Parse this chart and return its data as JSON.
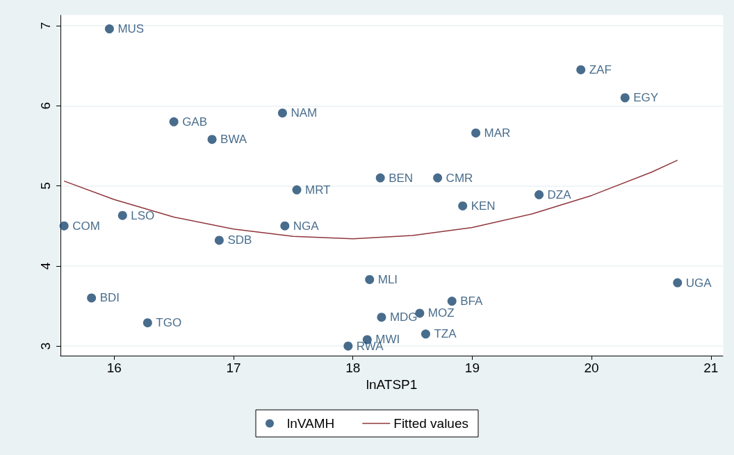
{
  "chart_data": {
    "type": "scatter",
    "xlabel": "lnATSP1",
    "xlim": [
      15.55,
      21.1
    ],
    "xticks": [
      16,
      17,
      18,
      19,
      20,
      21
    ],
    "ylim": [
      2.88,
      7.13
    ],
    "yticks": [
      3,
      4,
      5,
      6,
      7
    ],
    "grid": "y",
    "legend": "bottom",
    "marker": "circle",
    "series": [
      {
        "name": "lnVAMH",
        "color": "#1a476f",
        "x": [
          15.96,
          19.91,
          20.28,
          17.41,
          16.5,
          16.82,
          19.03,
          18.23,
          18.71,
          17.53,
          19.56,
          18.92,
          15.58,
          16.07,
          17.43,
          16.88,
          18.14,
          20.72,
          15.81,
          18.83,
          18.56,
          18.24,
          16.28,
          18.61,
          18.12,
          17.96
        ],
        "values": [
          6.96,
          6.45,
          6.1,
          5.91,
          5.8,
          5.58,
          5.66,
          5.1,
          5.1,
          4.95,
          4.89,
          4.75,
          4.5,
          4.63,
          4.5,
          4.32,
          3.83,
          3.79,
          3.6,
          3.56,
          3.41,
          3.36,
          3.29,
          3.15,
          3.08,
          3.0
        ]
      },
      {
        "name": "Fitted values",
        "type": "line",
        "color": "#90353b",
        "marker": "none",
        "line_style": "solid",
        "x": [
          15.58,
          16,
          16.5,
          17,
          17.5,
          18,
          18.5,
          19,
          19.5,
          20,
          20.5,
          20.72
        ],
        "values": [
          5.06,
          4.83,
          4.61,
          4.46,
          4.37,
          4.34,
          4.38,
          4.48,
          4.65,
          4.88,
          5.17,
          5.32
        ]
      }
    ],
    "annotations": [
      {
        "text": "MUS",
        "x": 15.96,
        "y": 6.96
      },
      {
        "text": "ZAF",
        "x": 19.91,
        "y": 6.45
      },
      {
        "text": "EGY",
        "x": 20.28,
        "y": 6.1
      },
      {
        "text": "NAM",
        "x": 17.41,
        "y": 5.91
      },
      {
        "text": "GAB",
        "x": 16.5,
        "y": 5.8
      },
      {
        "text": "BWA",
        "x": 16.82,
        "y": 5.58
      },
      {
        "text": "MAR",
        "x": 19.03,
        "y": 5.66
      },
      {
        "text": "BEN",
        "x": 18.23,
        "y": 5.1
      },
      {
        "text": "CMR",
        "x": 18.71,
        "y": 5.1
      },
      {
        "text": "MRT",
        "x": 17.53,
        "y": 4.95
      },
      {
        "text": "DZA",
        "x": 19.56,
        "y": 4.89
      },
      {
        "text": "KEN",
        "x": 18.92,
        "y": 4.75
      },
      {
        "text": "COM",
        "x": 15.58,
        "y": 4.5
      },
      {
        "text": "LSO",
        "x": 16.07,
        "y": 4.63
      },
      {
        "text": "NGA",
        "x": 17.43,
        "y": 4.5
      },
      {
        "text": "SDB",
        "x": 16.88,
        "y": 4.32
      },
      {
        "text": "MLI",
        "x": 18.14,
        "y": 3.83
      },
      {
        "text": "UGA",
        "x": 20.72,
        "y": 3.79
      },
      {
        "text": "BDI",
        "x": 15.81,
        "y": 3.6
      },
      {
        "text": "BFA",
        "x": 18.83,
        "y": 3.56
      },
      {
        "text": "MOZ",
        "x": 18.56,
        "y": 3.41
      },
      {
        "text": "MDG",
        "x": 18.24,
        "y": 3.36
      },
      {
        "text": "TGO",
        "x": 16.28,
        "y": 3.29
      },
      {
        "text": "TZA",
        "x": 18.61,
        "y": 3.15
      },
      {
        "text": "MWI",
        "x": 18.12,
        "y": 3.08
      },
      {
        "text": "RWA",
        "x": 17.96,
        "y": 3.0
      }
    ]
  }
}
